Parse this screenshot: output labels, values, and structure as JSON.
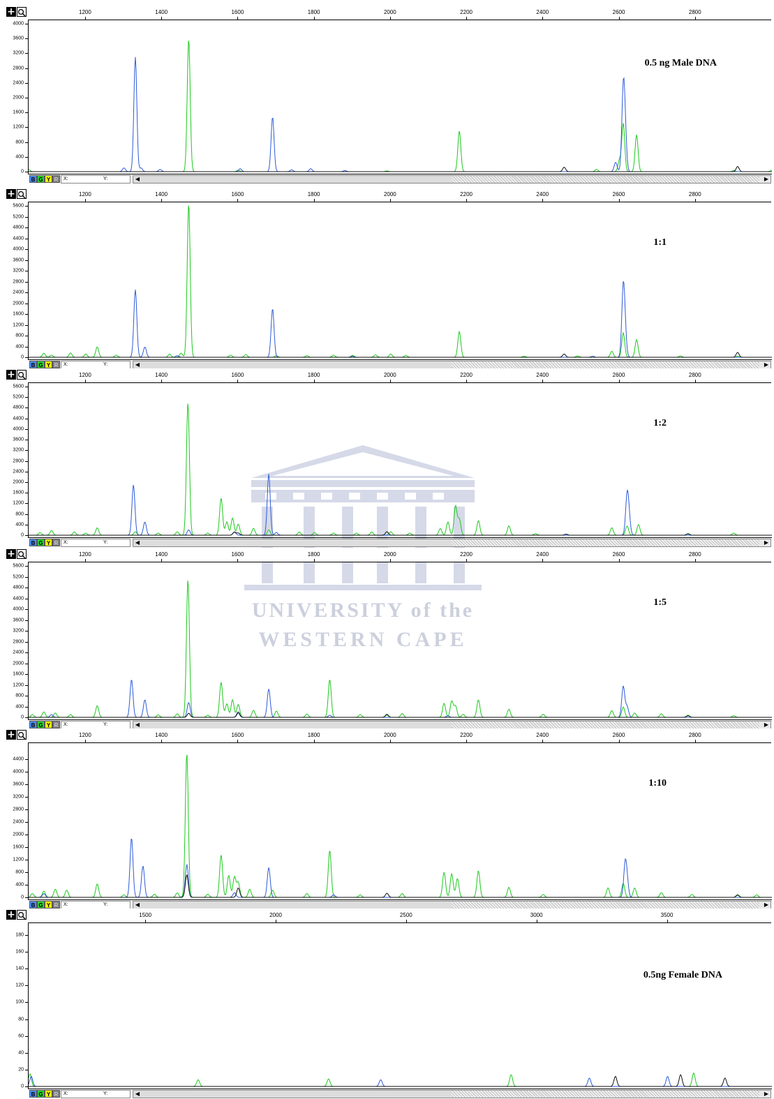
{
  "colors": {
    "blue": "#2e5bd8",
    "green": "#1ec81e",
    "black": "#111111"
  },
  "dye_buttons": [
    {
      "letter": "B",
      "color": "#4c8ef2"
    },
    {
      "letter": "G",
      "color": "#2ed02e"
    },
    {
      "letter": "Y",
      "color": "#f4f400"
    },
    {
      "letter": "R",
      "color": "#7d7d7d"
    }
  ],
  "coord_labels": {
    "x": "X:",
    "y": "Y:"
  },
  "watermark": {
    "line1": "UNIVERSITY of the",
    "line2": "WESTERN CAPE"
  },
  "panels": [
    {
      "label": "0.5 ng Male DNA"
    },
    {
      "label": "1:1"
    },
    {
      "label": "1:2"
    },
    {
      "label": "1:5"
    },
    {
      "label": "1:10"
    },
    {
      "label": "0.5ng Female DNA"
    }
  ],
  "chart_data": [
    {
      "type": "line",
      "title": "0.5 ng Male DNA",
      "xlim": [
        1050,
        3000
      ],
      "ylim": [
        0,
        4000
      ],
      "xticks": [
        1200,
        1400,
        1600,
        1800,
        2000,
        2200,
        2400,
        2600,
        2800
      ],
      "yticks": [
        0,
        400,
        800,
        1200,
        1600,
        2000,
        2400,
        2800,
        3200,
        3600,
        4000
      ],
      "series": [
        {
          "color": "blue",
          "peaks": [
            [
              1300,
              100
            ],
            [
              1330,
              3100
            ],
            [
              1345,
              100
            ],
            [
              1395,
              60
            ],
            [
              1605,
              80
            ],
            [
              1690,
              1480
            ],
            [
              1740,
              50
            ],
            [
              1790,
              80
            ],
            [
              1880,
              30
            ],
            [
              2590,
              250
            ],
            [
              2610,
              2100
            ],
            [
              2615,
              900
            ]
          ]
        },
        {
          "color": "green",
          "peaks": [
            [
              1050,
              60
            ],
            [
              1470,
              3600
            ],
            [
              1600,
              40
            ],
            [
              1990,
              20
            ],
            [
              2180,
              1100
            ],
            [
              2540,
              60
            ],
            [
              2600,
              300
            ],
            [
              2610,
              1300
            ],
            [
              2645,
              1000
            ],
            [
              2900,
              30
            ],
            [
              3000,
              40
            ]
          ]
        },
        {
          "color": "black",
          "peaks": [
            [
              2455,
              120
            ],
            [
              2910,
              140
            ]
          ]
        }
      ]
    },
    {
      "type": "line",
      "title": "1:1",
      "xlim": [
        1050,
        3000
      ],
      "ylim": [
        0,
        5600
      ],
      "xticks": [
        1200,
        1400,
        1600,
        1800,
        2000,
        2200,
        2400,
        2600,
        2800
      ],
      "yticks": [
        0,
        400,
        800,
        1200,
        1600,
        2000,
        2400,
        2800,
        3200,
        3600,
        4000,
        4400,
        4800,
        5200,
        5600
      ],
      "series": [
        {
          "color": "blue",
          "peaks": [
            [
              1330,
              2500
            ],
            [
              1355,
              380
            ],
            [
              1440,
              60
            ],
            [
              1690,
              1800
            ],
            [
              1900,
              40
            ],
            [
              2530,
              40
            ],
            [
              2610,
              2500
            ],
            [
              2615,
              700
            ]
          ]
        },
        {
          "color": "green",
          "peaks": [
            [
              1090,
              150
            ],
            [
              1110,
              80
            ],
            [
              1160,
              160
            ],
            [
              1200,
              120
            ],
            [
              1230,
              380
            ],
            [
              1280,
              80
            ],
            [
              1420,
              120
            ],
            [
              1450,
              150
            ],
            [
              1470,
              5700
            ],
            [
              1580,
              80
            ],
            [
              1620,
              100
            ],
            [
              1700,
              60
            ],
            [
              1780,
              60
            ],
            [
              1850,
              80
            ],
            [
              1900,
              70
            ],
            [
              1960,
              90
            ],
            [
              2000,
              120
            ],
            [
              2040,
              70
            ],
            [
              2180,
              950
            ],
            [
              2350,
              40
            ],
            [
              2490,
              50
            ],
            [
              2580,
              220
            ],
            [
              2610,
              900
            ],
            [
              2645,
              650
            ],
            [
              2760,
              50
            ],
            [
              2910,
              40
            ]
          ]
        },
        {
          "color": "black",
          "peaks": [
            [
              2455,
              120
            ],
            [
              2910,
              180
            ]
          ]
        }
      ]
    },
    {
      "type": "line",
      "title": "1:2",
      "xlim": [
        1050,
        3000
      ],
      "ylim": [
        0,
        5600
      ],
      "xticks": [
        1200,
        1400,
        1600,
        1800,
        2000,
        2200,
        2400,
        2600,
        2800
      ],
      "yticks": [
        0,
        400,
        800,
        1200,
        1600,
        2000,
        2400,
        2800,
        3200,
        3600,
        4000,
        4400,
        4800,
        5200,
        5600
      ],
      "series": [
        {
          "color": "blue",
          "peaks": [
            [
              1325,
              1900
            ],
            [
              1355,
              500
            ],
            [
              1470,
              200
            ],
            [
              1590,
              120
            ],
            [
              1680,
              2300
            ],
            [
              1700,
              100
            ],
            [
              2620,
              1400
            ],
            [
              2625,
              600
            ]
          ]
        },
        {
          "color": "green",
          "peaks": [
            [
              1080,
              100
            ],
            [
              1110,
              180
            ],
            [
              1170,
              120
            ],
            [
              1200,
              80
            ],
            [
              1230,
              280
            ],
            [
              1330,
              130
            ],
            [
              1390,
              80
            ],
            [
              1440,
              130
            ],
            [
              1468,
              5000
            ],
            [
              1520,
              80
            ],
            [
              1555,
              1400
            ],
            [
              1570,
              500
            ],
            [
              1585,
              650
            ],
            [
              1600,
              420
            ],
            [
              1640,
              260
            ],
            [
              1680,
              200
            ],
            [
              1760,
              120
            ],
            [
              1800,
              100
            ],
            [
              1850,
              80
            ],
            [
              1910,
              80
            ],
            [
              1950,
              120
            ],
            [
              2000,
              130
            ],
            [
              2050,
              80
            ],
            [
              2130,
              250
            ],
            [
              2150,
              500
            ],
            [
              2170,
              1100
            ],
            [
              2180,
              600
            ],
            [
              2230,
              550
            ],
            [
              2310,
              350
            ],
            [
              2380,
              60
            ],
            [
              2580,
              280
            ],
            [
              2620,
              350
            ],
            [
              2650,
              400
            ],
            [
              2780,
              60
            ],
            [
              2900,
              80
            ]
          ]
        },
        {
          "color": "black",
          "peaks": [
            [
              1590,
              120
            ],
            [
              1600,
              80
            ],
            [
              1990,
              130
            ],
            [
              2460,
              40
            ],
            [
              2780,
              50
            ]
          ]
        }
      ]
    },
    {
      "type": "line",
      "title": "1:5",
      "xlim": [
        1050,
        3000
      ],
      "ylim": [
        0,
        5600
      ],
      "xticks": [
        1200,
        1400,
        1600,
        1800,
        2000,
        2200,
        2400,
        2600,
        2800
      ],
      "yticks": [
        0,
        400,
        800,
        1200,
        1600,
        2000,
        2400,
        2800,
        3200,
        3600,
        4000,
        4400,
        4800,
        5200,
        5600
      ],
      "series": [
        {
          "color": "blue",
          "peaks": [
            [
              1110,
              100
            ],
            [
              1320,
              1400
            ],
            [
              1355,
              650
            ],
            [
              1470,
              550
            ],
            [
              1600,
              150
            ],
            [
              1680,
              1050
            ],
            [
              1840,
              80
            ],
            [
              2150,
              60
            ],
            [
              2610,
              1150
            ],
            [
              2620,
              400
            ]
          ]
        },
        {
          "color": "green",
          "peaks": [
            [
              1060,
              100
            ],
            [
              1090,
              200
            ],
            [
              1120,
              160
            ],
            [
              1160,
              100
            ],
            [
              1230,
              430
            ],
            [
              1390,
              90
            ],
            [
              1440,
              130
            ],
            [
              1468,
              5100
            ],
            [
              1520,
              80
            ],
            [
              1555,
              1300
            ],
            [
              1570,
              500
            ],
            [
              1585,
              650
            ],
            [
              1600,
              480
            ],
            [
              1640,
              260
            ],
            [
              1700,
              230
            ],
            [
              1780,
              120
            ],
            [
              1840,
              1400
            ],
            [
              1920,
              100
            ],
            [
              1990,
              80
            ],
            [
              2030,
              140
            ],
            [
              2140,
              520
            ],
            [
              2160,
              600
            ],
            [
              2170,
              420
            ],
            [
              2190,
              110
            ],
            [
              2230,
              650
            ],
            [
              2310,
              300
            ],
            [
              2400,
              110
            ],
            [
              2580,
              250
            ],
            [
              2610,
              380
            ],
            [
              2640,
              160
            ],
            [
              2710,
              130
            ],
            [
              2780,
              80
            ],
            [
              2900,
              60
            ]
          ]
        },
        {
          "color": "black",
          "peaks": [
            [
              1470,
              150
            ],
            [
              1600,
              200
            ],
            [
              1990,
              110
            ],
            [
              2780,
              60
            ]
          ]
        }
      ]
    },
    {
      "type": "line",
      "title": "1:10",
      "xlim": [
        1050,
        3000
      ],
      "ylim": [
        0,
        4800
      ],
      "xticks": [
        1200,
        1400,
        1600,
        1800,
        2000,
        2200,
        2400,
        2600,
        2800
      ],
      "yticks": [
        0,
        400,
        800,
        1200,
        1600,
        2000,
        2400,
        2800,
        3200,
        3600,
        4000,
        4400
      ],
      "series": [
        {
          "color": "blue",
          "peaks": [
            [
              1090,
              120
            ],
            [
              1320,
              1900
            ],
            [
              1350,
              1000
            ],
            [
              1465,
              1050
            ],
            [
              1590,
              150
            ],
            [
              1680,
              950
            ],
            [
              1850,
              80
            ],
            [
              2615,
              1000
            ],
            [
              2620,
              450
            ]
          ]
        },
        {
          "color": "green",
          "peaks": [
            [
              1060,
              120
            ],
            [
              1090,
              200
            ],
            [
              1120,
              260
            ],
            [
              1150,
              230
            ],
            [
              1230,
              430
            ],
            [
              1300,
              80
            ],
            [
              1380,
              100
            ],
            [
              1440,
              140
            ],
            [
              1465,
              4600
            ],
            [
              1520,
              100
            ],
            [
              1555,
              1350
            ],
            [
              1575,
              700
            ],
            [
              1590,
              650
            ],
            [
              1600,
              470
            ],
            [
              1630,
              260
            ],
            [
              1690,
              230
            ],
            [
              1780,
              120
            ],
            [
              1840,
              1500
            ],
            [
              1920,
              80
            ],
            [
              2030,
              120
            ],
            [
              2140,
              800
            ],
            [
              2160,
              750
            ],
            [
              2175,
              600
            ],
            [
              2230,
              850
            ],
            [
              2310,
              320
            ],
            [
              2400,
              90
            ],
            [
              2570,
              300
            ],
            [
              2610,
              450
            ],
            [
              2640,
              300
            ],
            [
              2710,
              150
            ],
            [
              2790,
              90
            ],
            [
              2910,
              60
            ],
            [
              2960,
              80
            ]
          ]
        },
        {
          "color": "black",
          "peaks": [
            [
              1465,
              720
            ],
            [
              1600,
              300
            ],
            [
              1990,
              130
            ],
            [
              2910,
              80
            ]
          ]
        }
      ]
    },
    {
      "type": "line",
      "title": "0.5ng Female DNA",
      "xlim": [
        1050,
        3900
      ],
      "ylim": [
        0,
        190
      ],
      "xticks": [
        1500,
        2000,
        2500,
        3000,
        3500
      ],
      "yticks": [
        0,
        20,
        40,
        60,
        80,
        100,
        120,
        140,
        160,
        180
      ],
      "series": [
        {
          "color": "blue",
          "peaks": [
            [
              1060,
              12
            ],
            [
              2400,
              8
            ],
            [
              3200,
              10
            ],
            [
              3500,
              12
            ]
          ]
        },
        {
          "color": "green",
          "peaks": [
            [
              1055,
              15
            ],
            [
              1700,
              8
            ],
            [
              2200,
              9
            ],
            [
              2900,
              14
            ],
            [
              3600,
              16
            ]
          ]
        },
        {
          "color": "black",
          "peaks": [
            [
              3300,
              12
            ],
            [
              3550,
              14
            ],
            [
              3720,
              10
            ]
          ]
        }
      ]
    }
  ]
}
